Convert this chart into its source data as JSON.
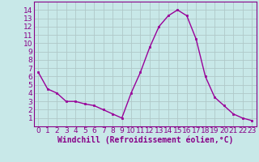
{
  "x": [
    0,
    1,
    2,
    3,
    4,
    5,
    6,
    7,
    8,
    9,
    10,
    11,
    12,
    13,
    14,
    15,
    16,
    17,
    18,
    19,
    20,
    21,
    22,
    23
  ],
  "y": [
    6.5,
    4.5,
    4.0,
    3.0,
    3.0,
    2.7,
    2.5,
    2.0,
    1.5,
    1.0,
    4.0,
    6.5,
    9.5,
    12.0,
    13.3,
    14.0,
    13.3,
    10.5,
    6.0,
    3.5,
    2.5,
    1.5,
    1.0,
    0.7
  ],
  "line_color": "#990099",
  "marker": "s",
  "marker_size": 2,
  "bg_color": "#c8e8e8",
  "grid_color": "#b0c8c8",
  "xlabel": "Windchill (Refroidissement éolien,°C)",
  "ylim": [
    0,
    15
  ],
  "xlim": [
    -0.5,
    23.5
  ],
  "yticks": [
    1,
    2,
    3,
    4,
    5,
    6,
    7,
    8,
    9,
    10,
    11,
    12,
    13,
    14
  ],
  "xticks": [
    0,
    1,
    2,
    3,
    4,
    5,
    6,
    7,
    8,
    9,
    10,
    11,
    12,
    13,
    14,
    15,
    16,
    17,
    18,
    19,
    20,
    21,
    22,
    23
  ],
  "tick_label_color": "#880088",
  "axis_color": "#880088",
  "xlabel_color": "#880088",
  "xlabel_fontsize": 7,
  "tick_fontsize": 6.5,
  "line_width": 1.0
}
